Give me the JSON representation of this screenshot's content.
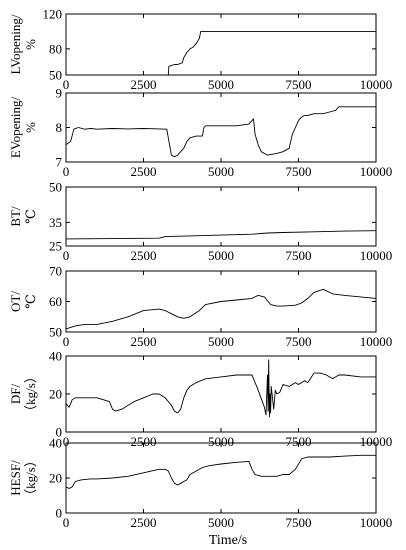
{
  "figure": {
    "xlabel": "Time/s"
  },
  "chart_data": [
    {
      "type": "line",
      "ylabel_lines": [
        "LVopening/",
        "%"
      ],
      "xlim": [
        0,
        10000
      ],
      "ylim": [
        50,
        120
      ],
      "xticks": [
        0,
        2500,
        5000,
        7500,
        10000
      ],
      "yticks": [
        50,
        80,
        120
      ],
      "series": [
        {
          "color": "#000000",
          "x": [
            0,
            3300,
            3320,
            3500,
            3600,
            3750,
            3800,
            3900,
            4000,
            4100,
            4200,
            4300,
            4350,
            10000
          ],
          "y": [
            50,
            50,
            60,
            62,
            62,
            64,
            70,
            76,
            80,
            82,
            86,
            92,
            100,
            100
          ]
        }
      ]
    },
    {
      "type": "line",
      "ylabel_lines": [
        "EVopening/",
        "%"
      ],
      "xlim": [
        0,
        10000
      ],
      "ylim": [
        7,
        9
      ],
      "xticks": [
        0,
        2500,
        5000,
        7500,
        10000
      ],
      "yticks": [
        7,
        8,
        9
      ],
      "series": [
        {
          "color": "#000000",
          "x": [
            0,
            150,
            250,
            400,
            600,
            800,
            1000,
            1500,
            2000,
            2500,
            3000,
            3250,
            3300,
            3400,
            3500,
            3600,
            3800,
            3900,
            4000,
            4200,
            4400,
            4450,
            4500,
            5000,
            5500,
            5900,
            6000,
            6050,
            6100,
            6200,
            6300,
            6500,
            6800,
            7000,
            7200,
            7300,
            7400,
            7500,
            7600,
            7700,
            7800,
            8000,
            8300,
            8500,
            8700,
            8800,
            8900,
            10000
          ],
          "y": [
            7.5,
            7.6,
            7.95,
            8.0,
            7.95,
            7.97,
            7.95,
            7.97,
            7.96,
            7.97,
            7.96,
            7.95,
            7.7,
            7.2,
            7.15,
            7.2,
            7.4,
            7.6,
            7.7,
            7.75,
            7.75,
            8.0,
            8.05,
            8.05,
            8.05,
            8.1,
            8.2,
            8.25,
            7.8,
            7.5,
            7.3,
            7.2,
            7.25,
            7.3,
            7.4,
            7.8,
            8.0,
            8.2,
            8.3,
            8.35,
            8.35,
            8.4,
            8.4,
            8.45,
            8.5,
            8.6,
            8.6,
            8.6
          ]
        }
      ]
    },
    {
      "type": "line",
      "ylabel_lines": [
        "BT/",
        "℃"
      ],
      "xlim": [
        0,
        10000
      ],
      "ylim": [
        25,
        50
      ],
      "xticks": [
        0,
        2500,
        5000,
        7500,
        10000
      ],
      "yticks": [
        25,
        35,
        50
      ],
      "series": [
        {
          "color": "#000000",
          "x": [
            0,
            1000,
            2000,
            3000,
            3200,
            4000,
            5000,
            6000,
            6500,
            7000,
            8000,
            9000,
            10000
          ],
          "y": [
            28,
            28.1,
            28.2,
            28.3,
            29,
            29.3,
            29.6,
            30,
            30.5,
            30.7,
            31,
            31.3,
            31.5
          ]
        }
      ]
    },
    {
      "type": "line",
      "ylabel_lines": [
        "OT/",
        "℃"
      ],
      "xlim": [
        0,
        10000
      ],
      "ylim": [
        50,
        70
      ],
      "xticks": [
        0,
        2500,
        5000,
        7500,
        10000
      ],
      "yticks": [
        50,
        60,
        70
      ],
      "series": [
        {
          "color": "#000000",
          "x": [
            0,
            300,
            600,
            1000,
            1500,
            2000,
            2500,
            3000,
            3200,
            3400,
            3600,
            3800,
            4000,
            4300,
            4500,
            5000,
            5500,
            6000,
            6200,
            6400,
            6600,
            6800,
            7000,
            7400,
            7600,
            7800,
            8000,
            8300,
            8600,
            9000,
            9500,
            10000
          ],
          "y": [
            51,
            52,
            52.5,
            52.5,
            53.5,
            55,
            57,
            57.5,
            57,
            56,
            55,
            54.5,
            55,
            57,
            59,
            60,
            60.5,
            61,
            62,
            61.5,
            59,
            58.5,
            58.5,
            58.8,
            59.5,
            61,
            63,
            64,
            62.5,
            62,
            61.5,
            61
          ]
        }
      ]
    },
    {
      "type": "line",
      "ylabel_lines": [
        "DF/",
        "（kg/s）"
      ],
      "xlim": [
        0,
        10000
      ],
      "ylim": [
        0,
        40
      ],
      "xticks": [
        0,
        2500,
        5000,
        7500,
        10000
      ],
      "yticks": [
        0,
        20,
        40
      ],
      "series": [
        {
          "color": "#000000",
          "x": [
            0,
            100,
            200,
            300,
            500,
            800,
            1000,
            1200,
            1400,
            1500,
            1600,
            1800,
            2000,
            2200,
            2500,
            2800,
            3000,
            3200,
            3400,
            3500,
            3600,
            3700,
            3800,
            3900,
            4000,
            4200,
            4500,
            5000,
            5500,
            6000,
            6200,
            6400,
            6450,
            6500,
            6520,
            6540,
            6560,
            6580,
            6600,
            6620,
            6650,
            6700,
            6750,
            6800,
            6900,
            7000,
            7200,
            7400,
            7500,
            7700,
            7800,
            8000,
            8200,
            8400,
            8600,
            8800,
            9000,
            9500,
            10000
          ],
          "y": [
            15,
            13,
            17,
            18,
            18,
            18,
            18,
            17,
            16,
            12,
            11,
            12,
            14,
            16,
            18,
            20,
            20,
            18,
            14,
            11,
            10,
            12,
            18,
            22,
            24,
            26,
            28,
            29,
            30,
            30,
            22,
            13,
            9,
            30,
            11,
            38,
            8,
            20,
            10,
            24,
            20,
            12,
            22,
            20,
            21,
            25,
            24,
            26,
            25,
            27,
            26,
            31,
            31,
            30,
            28,
            30,
            30,
            29,
            29
          ]
        }
      ]
    },
    {
      "type": "line",
      "ylabel_lines": [
        "HESF/",
        "（kg/s）"
      ],
      "xlim": [
        0,
        10000
      ],
      "ylim": [
        0,
        40
      ],
      "xticks": [
        0,
        2500,
        5000,
        7500,
        10000
      ],
      "yticks": [
        0,
        20,
        40
      ],
      "series": [
        {
          "color": "#000000",
          "x": [
            0,
            100,
            200,
            300,
            500,
            800,
            1000,
            1500,
            2000,
            2500,
            3000,
            3200,
            3300,
            3400,
            3500,
            3600,
            3700,
            3800,
            3900,
            4000,
            4200,
            4400,
            4600,
            5000,
            5500,
            5900,
            6000,
            6100,
            6300,
            6500,
            6800,
            7000,
            7200,
            7400,
            7600,
            7800,
            8000,
            8500,
            9000,
            9500,
            10000
          ],
          "y": [
            15,
            14,
            15,
            18,
            19,
            19.5,
            19.5,
            20,
            21,
            23,
            25,
            25,
            24,
            20,
            17,
            16,
            17,
            18,
            19,
            22,
            24,
            26,
            27,
            28,
            29,
            29.5,
            25,
            22,
            21,
            21,
            21,
            22,
            22,
            25,
            31,
            32,
            32,
            32,
            32.5,
            33,
            33
          ]
        }
      ]
    }
  ]
}
